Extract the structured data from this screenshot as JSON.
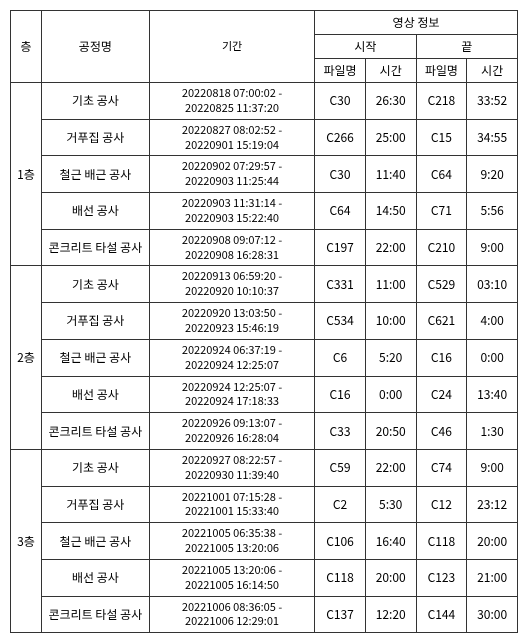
{
  "headers": {
    "floor": "층",
    "process": "공정명",
    "period": "기간",
    "video_info": "영상 정보",
    "start": "시작",
    "end": "끝",
    "filename": "파일명",
    "time": "시간"
  },
  "floors": [
    {
      "label": "1층",
      "rows": [
        {
          "process": "기초 공사",
          "period": "20220818 07:00:02 -\n20220825 11:37:20",
          "sfile": "C30",
          "stime": "26:30",
          "efile": "C218",
          "etime": "33:52"
        },
        {
          "process": "거푸집 공사",
          "period": "20220827 08:02:52 -\n20220901 15:19:04",
          "sfile": "C266",
          "stime": "25:00",
          "efile": "C15",
          "etime": "34:55"
        },
        {
          "process": "철근 배근 공사",
          "period": "20220902 07:29:57 -\n20220903 11:25:44",
          "sfile": "C30",
          "stime": "11:40",
          "efile": "C64",
          "etime": "9:20"
        },
        {
          "process": "배선 공사",
          "period": "20220903 11:31:14 -\n20220903 15:22:40",
          "sfile": "C64",
          "stime": "14:50",
          "efile": "C71",
          "etime": "5:56"
        },
        {
          "process": "콘크리트 타설 공사",
          "period": "20220908 09:07:12 -\n20220908 16:28:31",
          "sfile": "C197",
          "stime": "22:00",
          "efile": "C210",
          "etime": "9:00"
        }
      ]
    },
    {
      "label": "2층",
      "rows": [
        {
          "process": "기초 공사",
          "period": "20220913 06:59:20 -\n20220920 10:10:37",
          "sfile": "C331",
          "stime": "11:00",
          "efile": "C529",
          "etime": "03:10"
        },
        {
          "process": "거푸집 공사",
          "period": "20220920 13:03:50 -\n20220923 15:46:19",
          "sfile": "C534",
          "stime": "10:00",
          "efile": "C621",
          "etime": "4:00"
        },
        {
          "process": "철근 배근 공사",
          "period": "20220924 06:37:19 -\n20220924 12:25:07",
          "sfile": "C6",
          "stime": "5:20",
          "efile": "C16",
          "etime": "0:00"
        },
        {
          "process": "배선 공사",
          "period": "20220924 12:25:07 -\n20220924 17:18:33",
          "sfile": "C16",
          "stime": "0:00",
          "efile": "C24",
          "etime": "13:40"
        },
        {
          "process": "콘크리트 타설 공사",
          "period": "20220926 09:13:07 -\n20220926 16:28:04",
          "sfile": "C33",
          "stime": "20:50",
          "efile": "C46",
          "etime": "1:30"
        }
      ]
    },
    {
      "label": "3층",
      "rows": [
        {
          "process": "기초 공사",
          "period": "20220927 08:22:57 -\n20220930 11:39:40",
          "sfile": "C59",
          "stime": "22:00",
          "efile": "C74",
          "etime": "9:00"
        },
        {
          "process": "거푸집 공사",
          "period": "20221001 07:15:28 -\n20221001 15:33:40",
          "sfile": "C2",
          "stime": "5:30",
          "efile": "C12",
          "etime": "23:12"
        },
        {
          "process": "철근 배근 공사",
          "period": "20221005 06:35:38 -\n20221005 13:20:06",
          "sfile": "C106",
          "stime": "16:40",
          "efile": "C118",
          "etime": "20:00"
        },
        {
          "process": "배선 공사",
          "period": "20221005 13:20:06 -\n20221005 16:14:50",
          "sfile": "C118",
          "stime": "20:00",
          "efile": "C123",
          "etime": "21:00"
        },
        {
          "process": "콘크리트 타설 공사",
          "period": "20221006 08:36:05 -\n20221006 12:29:01",
          "sfile": "C137",
          "stime": "12:20",
          "efile": "C144",
          "etime": "30:00"
        }
      ]
    }
  ]
}
